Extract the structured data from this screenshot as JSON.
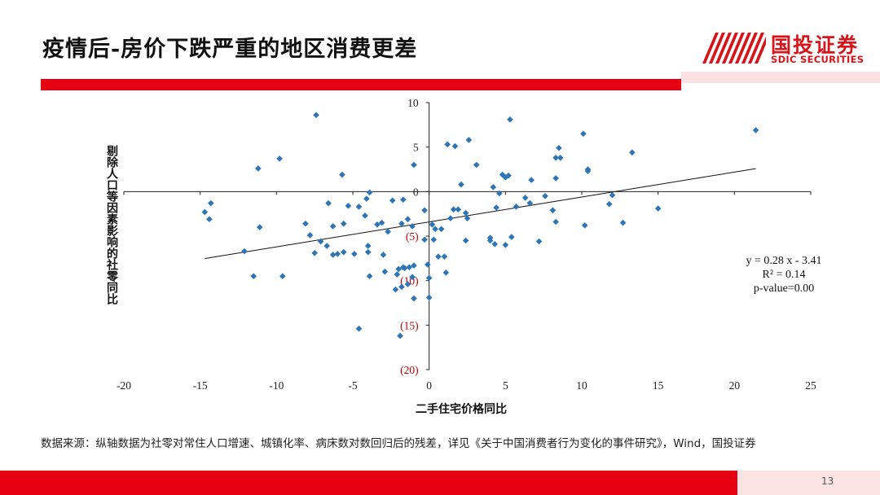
{
  "slide": {
    "title": "疫情后-房价下跌严重的地区消费更差",
    "page_number": "13",
    "source_note": "数据来源：纵轴数据为社零对常住人口增速、城镇化率、病床数对数回归后的残差，详见《关于中国消费者行为变化的事件研究》，Wind，国投证券"
  },
  "logo": {
    "name_cn": "国投证券",
    "name_en": "SDIC SECURITIES",
    "color": "#d7141a"
  },
  "colors": {
    "accent": "#e60012",
    "marker": "#2e75b6",
    "negative_label": "#c00000"
  },
  "chart_data": {
    "type": "scatter",
    "xlabel": "二手住宅价格同比",
    "ylabel": "剔除人口等因素影响的社零同比",
    "xlim": [
      -20,
      25
    ],
    "ylim": [
      -20,
      10
    ],
    "x_ticks": [
      {
        "value": -20,
        "label": "-20"
      },
      {
        "value": -15,
        "label": "-15"
      },
      {
        "value": -10,
        "label": "-10"
      },
      {
        "value": -5,
        "label": "-5"
      },
      {
        "value": 0,
        "label": "0"
      },
      {
        "value": 5,
        "label": "5"
      },
      {
        "value": 10,
        "label": "10"
      },
      {
        "value": 15,
        "label": "15"
      },
      {
        "value": 20,
        "label": "20"
      },
      {
        "value": 25,
        "label": "25"
      }
    ],
    "y_ticks": [
      {
        "value": 10,
        "label": "10",
        "negative": false
      },
      {
        "value": 5,
        "label": "5",
        "negative": false
      },
      {
        "value": 0,
        "label": "0",
        "negative": false
      },
      {
        "value": -5,
        "label": "(5)",
        "negative": true
      },
      {
        "value": -10,
        "label": "(10)",
        "negative": true
      },
      {
        "value": -15,
        "label": "(15)",
        "negative": true
      },
      {
        "value": -20,
        "label": "(20)",
        "negative": true
      }
    ],
    "trendline": {
      "slope": 0.28,
      "intercept": -3.41,
      "x_range": [
        -14.7,
        21.4
      ]
    },
    "annotation": {
      "equation": "y = 0.28 x - 3.41",
      "r2": "R² = 0.14",
      "pvalue": "p-value=0.00"
    },
    "points": [
      [
        -7.4,
        8.6
      ],
      [
        -11.2,
        2.6
      ],
      [
        -9.8,
        3.7
      ],
      [
        -14.3,
        -1.3
      ],
      [
        -14.7,
        -2.3
      ],
      [
        -14.4,
        -3.1
      ],
      [
        -11.1,
        -4.0
      ],
      [
        -11.5,
        -9.5
      ],
      [
        -12.1,
        -6.7
      ],
      [
        -9.6,
        -9.5
      ],
      [
        -7.8,
        -4.9
      ],
      [
        -8.1,
        -3.6
      ],
      [
        -6.6,
        -1.3
      ],
      [
        -6.3,
        -3.9
      ],
      [
        -5.6,
        -3.6
      ],
      [
        -5.7,
        1.9
      ],
      [
        -5.3,
        -1.6
      ],
      [
        -7.1,
        -5.6
      ],
      [
        -6.7,
        -6.1
      ],
      [
        -7.5,
        -6.9
      ],
      [
        -6.0,
        -7.0
      ],
      [
        -6.3,
        -7.1
      ],
      [
        -4.9,
        -7.0
      ],
      [
        -5.6,
        -6.8
      ],
      [
        -4.6,
        -1.7
      ],
      [
        -3.9,
        -0.1
      ],
      [
        -4.1,
        -0.8
      ],
      [
        -4.2,
        -2.7
      ],
      [
        -3.4,
        -3.7
      ],
      [
        -3.1,
        -3.5
      ],
      [
        -4.0,
        -6.1
      ],
      [
        -4.0,
        -6.8
      ],
      [
        -3.0,
        -7.1
      ],
      [
        -3.9,
        -9.5
      ],
      [
        -2.9,
        -9.0
      ],
      [
        -4.6,
        -15.4
      ],
      [
        -2.4,
        -1.0
      ],
      [
        -2.7,
        -4.5
      ],
      [
        -1.7,
        -0.9
      ],
      [
        -1.4,
        -3.1
      ],
      [
        -1.8,
        -3.6
      ],
      [
        -1.1,
        -3.9
      ],
      [
        -1.7,
        -8.5
      ],
      [
        -2.0,
        -8.7
      ],
      [
        -2.1,
        -9.3
      ],
      [
        -2.2,
        -11.0
      ],
      [
        -1.6,
        -8.6
      ],
      [
        -1.3,
        -8.5
      ],
      [
        -1.0,
        -8.3
      ],
      [
        -1.1,
        -9.6
      ],
      [
        -1.8,
        -10.7
      ],
      [
        -1.4,
        -10.4
      ],
      [
        -1.0,
        -12.0
      ],
      [
        -1.9,
        -16.2
      ],
      [
        -1.0,
        3.0
      ],
      [
        -0.3,
        -2.1
      ],
      [
        -0.3,
        -5.4
      ],
      [
        -0.1,
        -8.2
      ],
      [
        0.0,
        -9.7
      ],
      [
        0.0,
        -11.9
      ],
      [
        0.2,
        -3.7
      ],
      [
        0.4,
        -4.2
      ],
      [
        0.3,
        -5.4
      ],
      [
        0.6,
        -7.3
      ],
      [
        0.8,
        -4.2
      ],
      [
        1.0,
        -7.3
      ],
      [
        1.1,
        -9.1
      ],
      [
        1.2,
        5.3
      ],
      [
        1.4,
        -3.0
      ],
      [
        1.6,
        -2.0
      ],
      [
        1.7,
        5.1
      ],
      [
        2.1,
        0.8
      ],
      [
        1.9,
        -2.0
      ],
      [
        2.4,
        -2.4
      ],
      [
        2.6,
        5.8
      ],
      [
        3.1,
        3.0
      ],
      [
        2.5,
        -3.0
      ],
      [
        2.4,
        -5.5
      ],
      [
        4.2,
        0.5
      ],
      [
        4.0,
        -5.2
      ],
      [
        4.0,
        -5.5
      ],
      [
        4.3,
        -5.9
      ],
      [
        4.4,
        -1.8
      ],
      [
        4.6,
        -0.2
      ],
      [
        4.8,
        1.9
      ],
      [
        5.0,
        1.6
      ],
      [
        5.2,
        1.8
      ],
      [
        5.0,
        -6.0
      ],
      [
        5.4,
        -5.1
      ],
      [
        5.7,
        -1.7
      ],
      [
        5.3,
        8.1
      ],
      [
        6.3,
        -0.7
      ],
      [
        6.7,
        1.3
      ],
      [
        6.6,
        -1.3
      ],
      [
        7.2,
        -5.6
      ],
      [
        7.6,
        -0.5
      ],
      [
        8.1,
        -2.1
      ],
      [
        8.3,
        -3.4
      ],
      [
        8.3,
        1.5
      ],
      [
        8.3,
        3.8
      ],
      [
        8.5,
        4.9
      ],
      [
        8.6,
        3.8
      ],
      [
        10.1,
        6.5
      ],
      [
        10.4,
        2.5
      ],
      [
        10.4,
        2.3
      ],
      [
        10.2,
        -3.8
      ],
      [
        11.8,
        -1.4
      ],
      [
        12.0,
        -0.4
      ],
      [
        12.7,
        -3.5
      ],
      [
        13.3,
        4.4
      ],
      [
        15.0,
        -1.9
      ],
      [
        21.4,
        6.9
      ]
    ]
  }
}
